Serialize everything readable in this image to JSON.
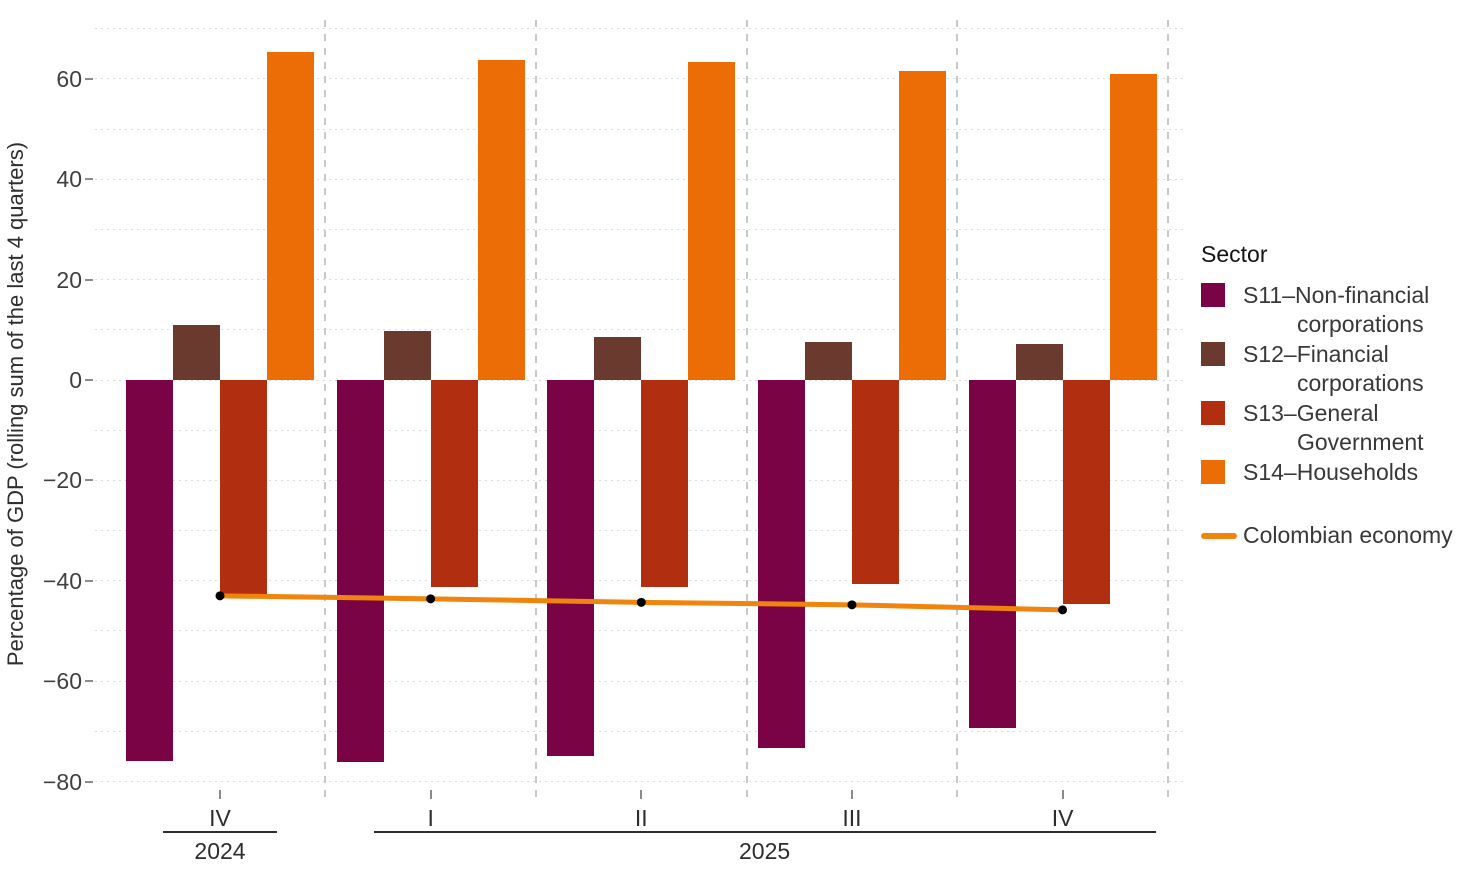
{
  "page": {
    "background": "#ffffff"
  },
  "chart_data": {
    "type": "bar",
    "title": "",
    "ylabel": "Percentage of GDP (rolling sum of the last 4 quarters)",
    "legend_title": "Sector",
    "x_quarter_labels": [
      "IV",
      "I",
      "II",
      "III",
      "IV"
    ],
    "x_year_groups": [
      {
        "label": "2024",
        "from": 0,
        "to": 0
      },
      {
        "label": "2025",
        "from": 1,
        "to": 4
      }
    ],
    "y_ticks": [
      60,
      40,
      20,
      0,
      -20,
      -40,
      -60,
      -80
    ],
    "y_tick_labels": [
      "60",
      "40",
      "20",
      "0",
      "−20",
      "−40",
      "−60",
      "−80"
    ],
    "ylim": [
      -80,
      70
    ],
    "grid_step": 10,
    "grid_on": true,
    "legend_position": "right",
    "series": [
      {
        "id": "s11",
        "name": "S11–Non-financial corporations",
        "legend_lines": [
          "S11–Non-financial",
          "corporations"
        ],
        "color": "#7A0346",
        "values": [
          -76.0,
          -76.1,
          -75.0,
          -73.4,
          -69.3
        ]
      },
      {
        "id": "s12",
        "name": "S12–Financial corporations",
        "legend_lines": [
          "S12–Financial",
          "corporations"
        ],
        "color": "#6A3A2E",
        "values": [
          11.0,
          9.7,
          8.5,
          7.6,
          7.2
        ]
      },
      {
        "id": "s13",
        "name": "S13–General Government",
        "legend_lines": [
          "S13–General",
          "Government"
        ],
        "color": "#B22E11",
        "values": [
          -43.3,
          -41.2,
          -41.2,
          -40.7,
          -44.6
        ]
      },
      {
        "id": "s14",
        "name": "S14–Households",
        "legend_lines": [
          "S14–Households"
        ],
        "color": "#EC6C05",
        "values": [
          65.3,
          63.8,
          63.4,
          61.6,
          60.9
        ]
      }
    ],
    "line_series": {
      "id": "economy",
      "name": "Colombian economy",
      "color": "#F0840C",
      "point_color": "#000000",
      "values": [
        -43.0,
        -43.6,
        -44.3,
        -44.8,
        -45.8
      ]
    }
  }
}
